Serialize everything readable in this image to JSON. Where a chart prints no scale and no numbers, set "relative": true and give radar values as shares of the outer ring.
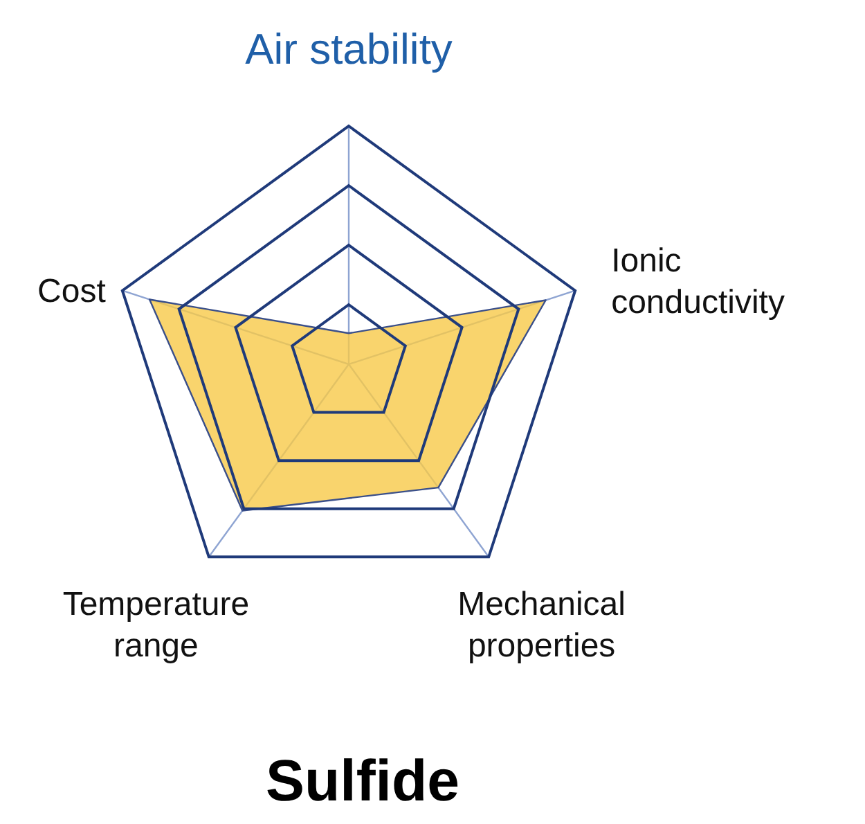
{
  "chart_data": {
    "type": "radar",
    "title": "Sulfide",
    "relative": true,
    "grid": true,
    "categories": [
      "Air stability",
      "Ionic conductivity",
      "Mechanical properties",
      "Temperature range",
      "Cost"
    ],
    "series": [
      {
        "color": "#f7c948",
        "values": [
          0.13,
          0.87,
          0.64,
          0.76,
          0.88
        ]
      }
    ]
  }
}
